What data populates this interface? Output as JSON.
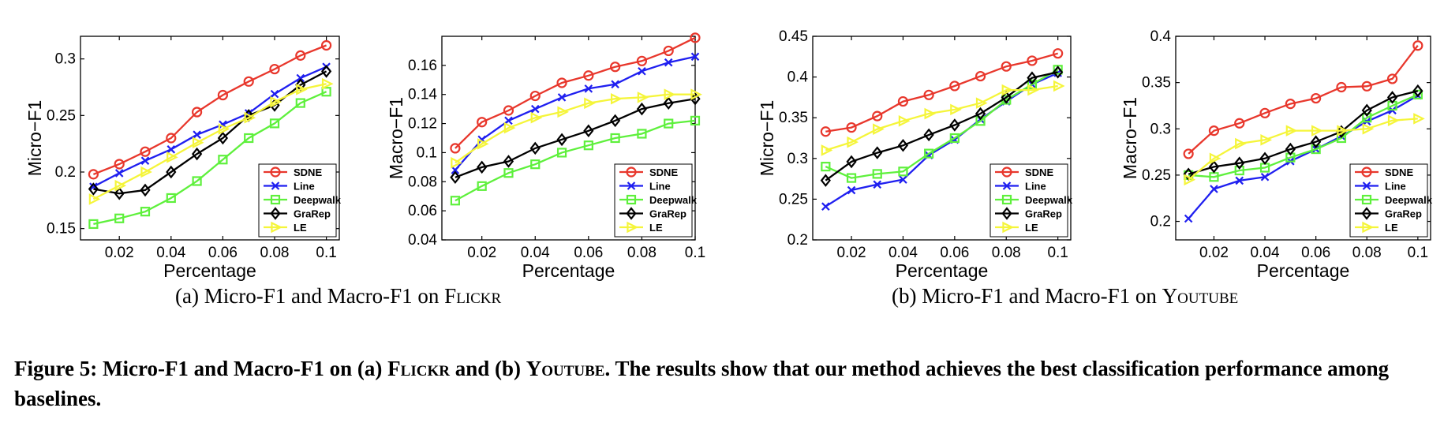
{
  "legend_labels": [
    "SDNE",
    "Line",
    "Deepwalk",
    "GraRep",
    "LE"
  ],
  "series_colors": {
    "SDNE": "#e8372c",
    "Line": "#1f1ff0",
    "Deepwalk": "#5ef03c",
    "GraRep": "#000000",
    "LE": "#f5f53a"
  },
  "subcaptions": {
    "a_prefix": "(a) Micro-F1 and Macro-F1 on ",
    "a_name": "Flickr",
    "b_prefix": "(b) Micro-F1 and Macro-F1 on ",
    "b_name": "Youtube"
  },
  "figure_caption": {
    "part1": "Figure 5: Micro-F1 and Macro-F1 on (a) ",
    "name1": "Flickr",
    "part2": " and (b) ",
    "name2": "Youtube",
    "part3": ". The results show that our method achieves the best classification performance among baselines."
  },
  "chart_data": [
    {
      "type": "line",
      "xlabel": "Percentage",
      "ylabel": "Micro−F1",
      "xlim": [
        0.005,
        0.105
      ],
      "ylim": [
        0.14,
        0.32
      ],
      "xticks": [
        0.02,
        0.04,
        0.06,
        0.08,
        0.1
      ],
      "xtick_labels": [
        "0.02",
        "0.04",
        "0.06",
        "0.08",
        "0.1"
      ],
      "yticks": [
        0.15,
        0.2,
        0.25,
        0.3
      ],
      "ytick_labels": [
        "0.15",
        "0.2",
        "0.25",
        "0.3"
      ],
      "legend": "bottom-right",
      "x": [
        0.01,
        0.02,
        0.03,
        0.04,
        0.05,
        0.06,
        0.07,
        0.08,
        0.09,
        0.1
      ],
      "series": [
        {
          "name": "SDNE",
          "values": [
            0.198,
            0.207,
            0.218,
            0.23,
            0.253,
            0.268,
            0.28,
            0.291,
            0.303,
            0.312
          ]
        },
        {
          "name": "Line",
          "values": [
            0.187,
            0.199,
            0.21,
            0.22,
            0.233,
            0.242,
            0.252,
            0.269,
            0.283,
            0.293
          ]
        },
        {
          "name": "Deepwalk",
          "values": [
            0.154,
            0.159,
            0.165,
            0.177,
            0.192,
            0.211,
            0.23,
            0.243,
            0.261,
            0.271
          ]
        },
        {
          "name": "GraRep",
          "values": [
            0.185,
            0.181,
            0.184,
            0.2,
            0.216,
            0.23,
            0.25,
            0.259,
            0.277,
            0.289
          ]
        },
        {
          "name": "LE",
          "values": [
            0.176,
            0.188,
            0.2,
            0.213,
            0.226,
            0.238,
            0.248,
            0.262,
            0.273,
            0.278
          ]
        }
      ]
    },
    {
      "type": "line",
      "xlabel": "Percentage",
      "ylabel": "Macro−F1",
      "xlim": [
        0.005,
        0.1
      ],
      "ylim": [
        0.04,
        0.18
      ],
      "xticks": [
        0.02,
        0.04,
        0.06,
        0.08,
        0.1
      ],
      "xtick_labels": [
        "0.02",
        "0.04",
        "0.06",
        "0.08",
        "0.1"
      ],
      "yticks": [
        0.04,
        0.06,
        0.08,
        0.1,
        0.12,
        0.14,
        0.16
      ],
      "ytick_labels": [
        "0.04",
        "0.06",
        "0.08",
        "0.1",
        "0.12",
        "0.14",
        "0.16"
      ],
      "legend": "bottom-right",
      "x": [
        0.01,
        0.02,
        0.03,
        0.04,
        0.05,
        0.06,
        0.07,
        0.08,
        0.09,
        0.1
      ],
      "series": [
        {
          "name": "SDNE",
          "values": [
            0.103,
            0.121,
            0.129,
            0.139,
            0.148,
            0.153,
            0.159,
            0.163,
            0.17,
            0.179
          ]
        },
        {
          "name": "Line",
          "values": [
            0.088,
            0.109,
            0.122,
            0.13,
            0.138,
            0.144,
            0.147,
            0.156,
            0.162,
            0.166
          ]
        },
        {
          "name": "Deepwalk",
          "values": [
            0.067,
            0.077,
            0.086,
            0.092,
            0.1,
            0.105,
            0.11,
            0.113,
            0.12,
            0.122
          ]
        },
        {
          "name": "GraRep",
          "values": [
            0.083,
            0.09,
            0.094,
            0.103,
            0.109,
            0.115,
            0.122,
            0.13,
            0.134,
            0.137
          ]
        },
        {
          "name": "LE",
          "values": [
            0.093,
            0.106,
            0.117,
            0.124,
            0.128,
            0.134,
            0.137,
            0.138,
            0.14,
            0.14
          ]
        }
      ]
    },
    {
      "type": "line",
      "xlabel": "Percentage",
      "ylabel": "Micro−F1",
      "xlim": [
        0.005,
        0.105
      ],
      "ylim": [
        0.2,
        0.45
      ],
      "xticks": [
        0.02,
        0.04,
        0.06,
        0.08,
        0.1
      ],
      "xtick_labels": [
        "0.02",
        "0.04",
        "0.06",
        "0.08",
        "0.1"
      ],
      "yticks": [
        0.2,
        0.25,
        0.3,
        0.35,
        0.4,
        0.45
      ],
      "ytick_labels": [
        "0.2",
        "0.25",
        "0.3",
        "0.35",
        "0.4",
        "0.45"
      ],
      "legend": "bottom-right",
      "x": [
        0.01,
        0.02,
        0.03,
        0.04,
        0.05,
        0.06,
        0.07,
        0.08,
        0.09,
        0.1
      ],
      "series": [
        {
          "name": "SDNE",
          "values": [
            0.333,
            0.338,
            0.352,
            0.37,
            0.378,
            0.389,
            0.401,
            0.413,
            0.42,
            0.429
          ]
        },
        {
          "name": "Line",
          "values": [
            0.241,
            0.261,
            0.268,
            0.274,
            0.304,
            0.323,
            0.348,
            0.37,
            0.391,
            0.405
          ]
        },
        {
          "name": "Deepwalk",
          "values": [
            0.29,
            0.276,
            0.281,
            0.284,
            0.306,
            0.325,
            0.346,
            0.372,
            0.391,
            0.409
          ]
        },
        {
          "name": "GraRep",
          "values": [
            0.273,
            0.296,
            0.307,
            0.316,
            0.329,
            0.341,
            0.355,
            0.375,
            0.399,
            0.406
          ]
        },
        {
          "name": "LE",
          "values": [
            0.31,
            0.32,
            0.336,
            0.346,
            0.355,
            0.36,
            0.368,
            0.384,
            0.384,
            0.389
          ]
        }
      ]
    },
    {
      "type": "line",
      "xlabel": "Percentage",
      "ylabel": "Macro−F1",
      "xlim": [
        0.005,
        0.105
      ],
      "ylim": [
        0.18,
        0.4
      ],
      "xticks": [
        0.02,
        0.04,
        0.06,
        0.08,
        0.1
      ],
      "xtick_labels": [
        "0.02",
        "0.04",
        "0.06",
        "0.08",
        "0.1"
      ],
      "yticks": [
        0.2,
        0.25,
        0.3,
        0.35,
        0.4
      ],
      "ytick_labels": [
        "0.2",
        "0.25",
        "0.3",
        "0.35",
        "0.4"
      ],
      "legend": "bottom-right",
      "x": [
        0.01,
        0.02,
        0.03,
        0.04,
        0.05,
        0.06,
        0.07,
        0.08,
        0.09,
        0.1
      ],
      "series": [
        {
          "name": "SDNE",
          "values": [
            0.273,
            0.298,
            0.306,
            0.317,
            0.327,
            0.333,
            0.345,
            0.346,
            0.354,
            0.39
          ]
        },
        {
          "name": "Line",
          "values": [
            0.203,
            0.235,
            0.244,
            0.248,
            0.265,
            0.278,
            0.292,
            0.308,
            0.32,
            0.336
          ]
        },
        {
          "name": "Deepwalk",
          "values": [
            0.25,
            0.248,
            0.255,
            0.258,
            0.269,
            0.278,
            0.29,
            0.312,
            0.325,
            0.337
          ]
        },
        {
          "name": "GraRep",
          "values": [
            0.251,
            0.259,
            0.263,
            0.268,
            0.278,
            0.286,
            0.297,
            0.32,
            0.334,
            0.341
          ]
        },
        {
          "name": "LE",
          "values": [
            0.245,
            0.268,
            0.284,
            0.288,
            0.298,
            0.298,
            0.298,
            0.3,
            0.309,
            0.311
          ]
        }
      ]
    }
  ]
}
